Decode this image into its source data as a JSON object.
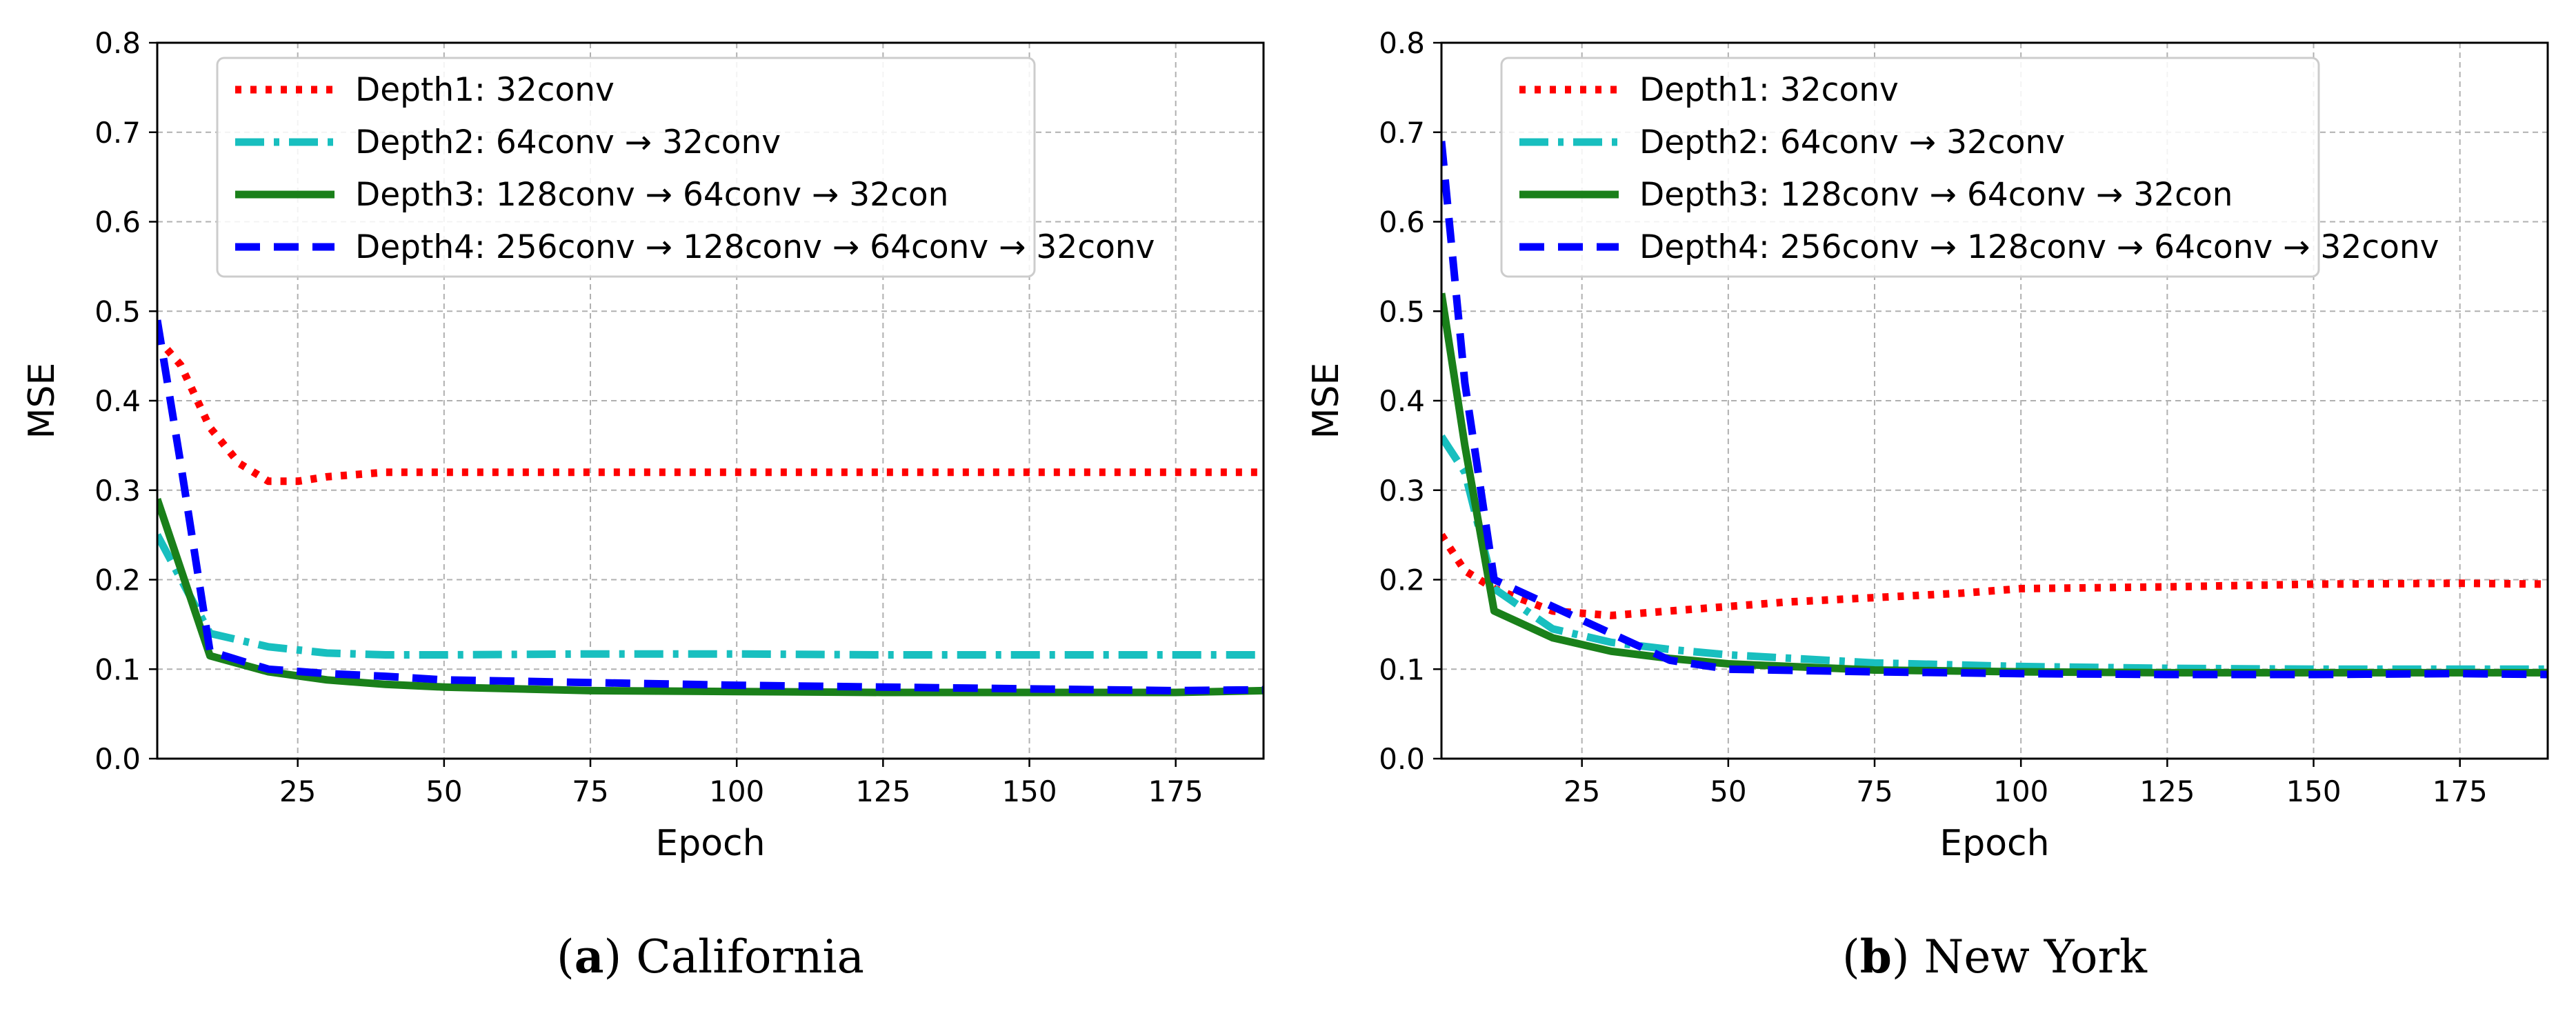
{
  "colors": {
    "depth1": "#ff0000",
    "depth2": "#18bfbf",
    "depth3": "#1a801a",
    "depth4": "#0000ff",
    "grid": "#b0b0b0"
  },
  "chart_data": [
    {
      "type": "line",
      "caption_letter": "a",
      "caption_open": "(",
      "caption_close": ")",
      "caption_text": " California",
      "xlabel": "Epoch",
      "ylabel": "MSE",
      "xlim": [
        1,
        190
      ],
      "ylim": [
        0.0,
        0.8
      ],
      "xticks": [
        25,
        50,
        75,
        100,
        125,
        150,
        175
      ],
      "yticks": [
        "0.0",
        "0.1",
        "0.2",
        "0.3",
        "0.4",
        "0.5",
        "0.6",
        "0.7",
        "0.8"
      ],
      "grid": true,
      "legend_position": "top",
      "series": [
        {
          "name": "Depth1: 32conv",
          "style": "dotted",
          "color_key": "depth1",
          "x": [
            1,
            5,
            10,
            15,
            20,
            25,
            30,
            40,
            50,
            75,
            100,
            125,
            150,
            175,
            190
          ],
          "y": [
            0.47,
            0.44,
            0.37,
            0.33,
            0.31,
            0.31,
            0.315,
            0.32,
            0.32,
            0.32,
            0.32,
            0.32,
            0.32,
            0.32,
            0.32
          ]
        },
        {
          "name": "Depth2: 64conv → 32conv",
          "style": "dashdot",
          "color_key": "depth2",
          "x": [
            1,
            10,
            20,
            30,
            40,
            50,
            75,
            100,
            125,
            150,
            175,
            190
          ],
          "y": [
            0.25,
            0.14,
            0.125,
            0.118,
            0.116,
            0.116,
            0.117,
            0.117,
            0.116,
            0.116,
            0.116,
            0.116
          ]
        },
        {
          "name": "Depth3: 128conv → 64conv → 32con",
          "style": "solid",
          "color_key": "depth3",
          "x": [
            1,
            10,
            20,
            30,
            40,
            50,
            75,
            100,
            125,
            150,
            175,
            190
          ],
          "y": [
            0.29,
            0.115,
            0.097,
            0.088,
            0.083,
            0.08,
            0.076,
            0.075,
            0.074,
            0.074,
            0.074,
            0.076
          ]
        },
        {
          "name": "Depth4: 256conv → 128conv → 64conv → 32conv",
          "style": "dashed",
          "color_key": "depth4",
          "x": [
            1,
            5,
            10,
            20,
            30,
            40,
            50,
            75,
            100,
            125,
            150,
            175,
            190
          ],
          "y": [
            0.49,
            0.33,
            0.12,
            0.1,
            0.095,
            0.092,
            0.088,
            0.085,
            0.082,
            0.08,
            0.078,
            0.076,
            0.077
          ]
        }
      ]
    },
    {
      "type": "line",
      "caption_letter": "b",
      "caption_open": "(",
      "caption_close": ")",
      "caption_text": " New York",
      "xlabel": "Epoch",
      "ylabel": "MSE",
      "xlim": [
        1,
        190
      ],
      "ylim": [
        0.0,
        0.8
      ],
      "xticks": [
        25,
        50,
        75,
        100,
        125,
        150,
        175
      ],
      "yticks": [
        "0.0",
        "0.1",
        "0.2",
        "0.3",
        "0.4",
        "0.5",
        "0.6",
        "0.7",
        "0.8"
      ],
      "grid": true,
      "legend_position": "top",
      "series": [
        {
          "name": "Depth1: 32conv",
          "style": "dotted",
          "color_key": "depth1",
          "x": [
            1,
            5,
            10,
            20,
            30,
            40,
            50,
            60,
            75,
            90,
            100,
            125,
            150,
            175,
            190
          ],
          "y": [
            0.25,
            0.21,
            0.19,
            0.165,
            0.16,
            0.165,
            0.17,
            0.175,
            0.18,
            0.185,
            0.19,
            0.192,
            0.195,
            0.196,
            0.195
          ]
        },
        {
          "name": "Depth2: 64conv → 32conv",
          "style": "dashdot",
          "color_key": "depth2",
          "x": [
            1,
            5,
            10,
            20,
            30,
            40,
            50,
            75,
            100,
            125,
            150,
            175,
            190
          ],
          "y": [
            0.36,
            0.32,
            0.19,
            0.145,
            0.13,
            0.122,
            0.116,
            0.107,
            0.103,
            0.101,
            0.1,
            0.1,
            0.1
          ]
        },
        {
          "name": "Depth3: 128conv → 64conv → 32con",
          "style": "solid",
          "color_key": "depth3",
          "x": [
            1,
            5,
            10,
            20,
            30,
            40,
            50,
            75,
            100,
            125,
            150,
            175,
            190
          ],
          "y": [
            0.52,
            0.35,
            0.165,
            0.135,
            0.12,
            0.112,
            0.106,
            0.099,
            0.097,
            0.096,
            0.096,
            0.096,
            0.096
          ]
        },
        {
          "name": "Depth4: 256conv → 128conv → 64conv → 32conv",
          "style": "dashed",
          "color_key": "depth4",
          "x": [
            1,
            5,
            10,
            20,
            30,
            40,
            50,
            75,
            100,
            125,
            150,
            175,
            190
          ],
          "y": [
            0.69,
            0.42,
            0.2,
            0.17,
            0.14,
            0.11,
            0.1,
            0.097,
            0.095,
            0.094,
            0.094,
            0.095,
            0.094
          ]
        }
      ]
    }
  ]
}
